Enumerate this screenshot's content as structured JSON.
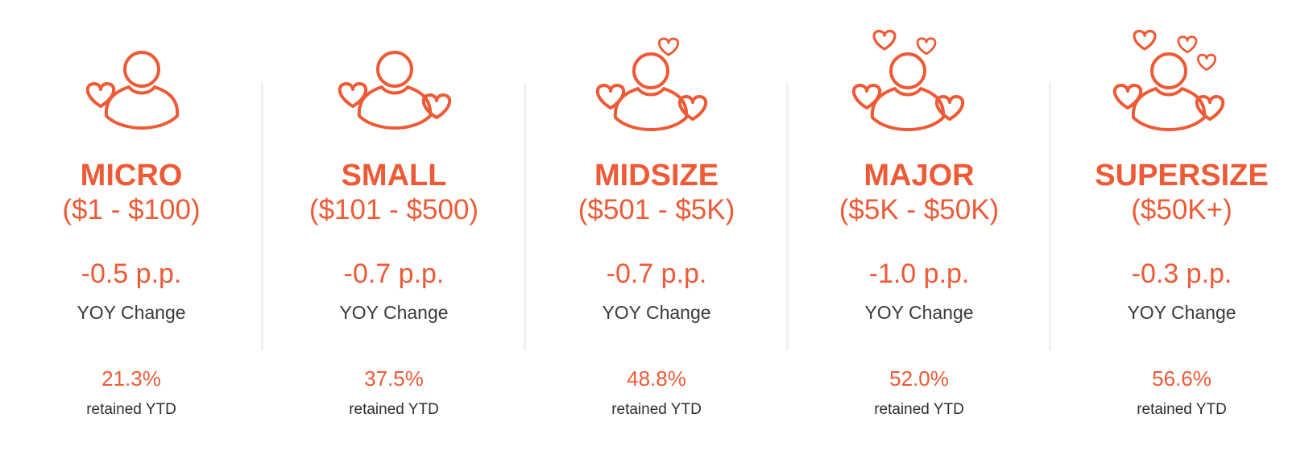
{
  "accent_color": "#ee5a35",
  "segments": [
    {
      "title": "MICRO",
      "range": "($1 - $100)",
      "yoy_change": "-0.5 p.p.",
      "yoy_label": "YOY Change",
      "retained": "21.3%",
      "retained_label": "retained YTD",
      "icon": "donor-one-heart-icon"
    },
    {
      "title": "SMALL",
      "range": "($101 - $500)",
      "yoy_change": "-0.7 p.p.",
      "yoy_label": "YOY Change",
      "retained": "37.5%",
      "retained_label": "retained YTD",
      "icon": "donor-two-hearts-icon"
    },
    {
      "title": "MIDSIZE",
      "range": "($501 - $5K)",
      "yoy_change": "-0.7 p.p.",
      "yoy_label": "YOY Change",
      "retained": "48.8%",
      "retained_label": "retained YTD",
      "icon": "donor-three-hearts-icon"
    },
    {
      "title": "MAJOR",
      "range": "($5K - $50K)",
      "yoy_change": "-1.0 p.p.",
      "yoy_label": "YOY Change",
      "retained": "52.0%",
      "retained_label": "retained YTD",
      "icon": "donor-four-hearts-icon"
    },
    {
      "title": "SUPERSIZE",
      "range": "($50K+)",
      "yoy_change": "-0.3 p.p.",
      "yoy_label": "YOY Change",
      "retained": "56.6%",
      "retained_label": "retained YTD",
      "icon": "donor-five-hearts-icon"
    }
  ]
}
